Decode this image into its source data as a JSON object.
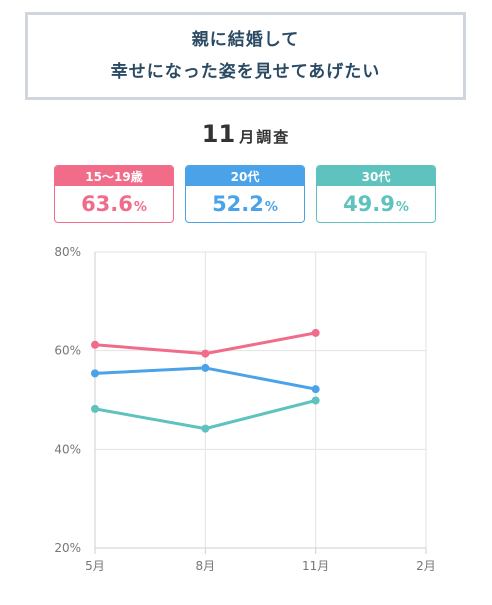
{
  "header": {
    "line1": "親に結婚して",
    "line2": "幸せになった姿を見せてあげたい"
  },
  "survey": {
    "month": "11",
    "suffix": "月調査"
  },
  "colors": {
    "teen": "#f06c89",
    "twenties": "#4aa3e8",
    "thirties": "#5ec2be"
  },
  "cards": [
    {
      "label": "15〜19歳",
      "value": "63.6",
      "unit": "%"
    },
    {
      "label": "20代",
      "value": "52.2",
      "unit": "%"
    },
    {
      "label": "30代",
      "value": "49.9",
      "unit": "%"
    }
  ],
  "chart_data": {
    "type": "line",
    "categories": [
      "5月",
      "8月",
      "11月",
      "2月"
    ],
    "ylim": [
      20,
      80
    ],
    "yticks": [
      "20%",
      "40%",
      "60%",
      "80%"
    ],
    "grid": true,
    "series": [
      {
        "name": "15〜19歳",
        "color": "#f06c89",
        "values": [
          61.2,
          59.4,
          63.6,
          null
        ]
      },
      {
        "name": "20代",
        "color": "#4aa3e8",
        "values": [
          55.4,
          56.5,
          52.2,
          null
        ]
      },
      {
        "name": "30代",
        "color": "#5ec2be",
        "values": [
          48.2,
          44.2,
          49.9,
          null
        ]
      }
    ]
  }
}
